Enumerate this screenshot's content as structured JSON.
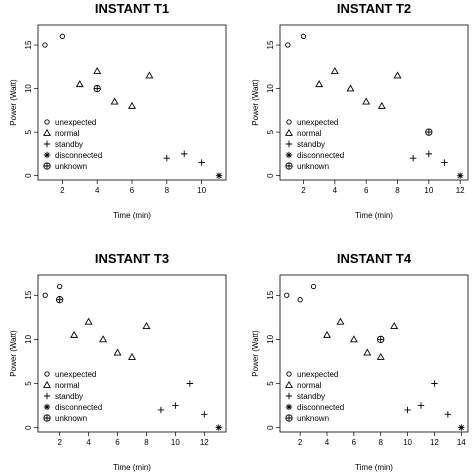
{
  "chart_data": [
    {
      "type": "scatter",
      "title": "INSTANT T1",
      "xlabel": "Time (min)",
      "ylabel": "Power (Watt)",
      "xlim": [
        0.6,
        11.4
      ],
      "ylim": [
        -0.5,
        17.3
      ],
      "xticks": [
        2,
        4,
        6,
        8,
        10
      ],
      "yticks": [
        0,
        5,
        10,
        15
      ],
      "grid": false,
      "legend_position": "bottom-left",
      "series": [
        {
          "name": "unexpected",
          "marker": "circle",
          "points": [
            [
              1,
              15
            ],
            [
              2,
              16
            ]
          ]
        },
        {
          "name": "normal",
          "marker": "triangle",
          "points": [
            [
              3,
              10.5
            ],
            [
              4,
              12
            ],
            [
              5,
              8.5
            ],
            [
              6,
              8
            ],
            [
              7,
              11.5
            ]
          ]
        },
        {
          "name": "standby",
          "marker": "plus",
          "points": [
            [
              8,
              2
            ],
            [
              9,
              2.5
            ],
            [
              10,
              1.5
            ]
          ]
        },
        {
          "name": "disconnected",
          "marker": "asterisk",
          "points": [
            [
              11,
              0
            ]
          ]
        },
        {
          "name": "unknown",
          "marker": "circle-plus",
          "points": [
            [
              4,
              10
            ]
          ]
        }
      ]
    },
    {
      "type": "scatter",
      "title": "INSTANT T2",
      "xlabel": "Time (min)",
      "ylabel": "Power (Watt)",
      "xlim": [
        0.5,
        12.5
      ],
      "ylim": [
        -0.5,
        17.3
      ],
      "xticks": [
        2,
        4,
        6,
        8,
        10,
        12
      ],
      "yticks": [
        0,
        5,
        10,
        15
      ],
      "grid": false,
      "legend_position": "bottom-left",
      "series": [
        {
          "name": "unexpected",
          "marker": "circle",
          "points": [
            [
              1,
              15
            ],
            [
              2,
              16
            ]
          ]
        },
        {
          "name": "normal",
          "marker": "triangle",
          "points": [
            [
              3,
              10.5
            ],
            [
              4,
              12
            ],
            [
              5,
              10
            ],
            [
              6,
              8.5
            ],
            [
              7,
              8
            ],
            [
              8,
              11.5
            ]
          ]
        },
        {
          "name": "standby",
          "marker": "plus",
          "points": [
            [
              9,
              2
            ],
            [
              10,
              2.5
            ],
            [
              11,
              1.5
            ]
          ]
        },
        {
          "name": "disconnected",
          "marker": "asterisk",
          "points": [
            [
              12,
              0
            ]
          ]
        },
        {
          "name": "unknown",
          "marker": "circle-plus",
          "points": [
            [
              10,
              5
            ]
          ]
        }
      ]
    },
    {
      "type": "scatter",
      "title": "INSTANT T3",
      "xlabel": "Time (min)",
      "ylabel": "Power (Watt)",
      "xlim": [
        0.5,
        13.5
      ],
      "ylim": [
        -0.5,
        17.3
      ],
      "xticks": [
        2,
        4,
        6,
        8,
        10,
        12
      ],
      "yticks": [
        0,
        5,
        10,
        15
      ],
      "grid": false,
      "legend_position": "bottom-left",
      "series": [
        {
          "name": "unexpected",
          "marker": "circle",
          "points": [
            [
              1,
              15
            ],
            [
              2,
              16
            ]
          ]
        },
        {
          "name": "normal",
          "marker": "triangle",
          "points": [
            [
              3,
              10.5
            ],
            [
              4,
              12
            ],
            [
              5,
              10
            ],
            [
              6,
              8.5
            ],
            [
              7,
              8
            ],
            [
              8,
              11.5
            ]
          ]
        },
        {
          "name": "standby",
          "marker": "plus",
          "points": [
            [
              9,
              2
            ],
            [
              10,
              2.5
            ],
            [
              11,
              5
            ],
            [
              12,
              1.5
            ]
          ]
        },
        {
          "name": "disconnected",
          "marker": "asterisk",
          "points": [
            [
              13,
              0
            ]
          ]
        },
        {
          "name": "unknown",
          "marker": "circle-plus",
          "points": [
            [
              2,
              14.5
            ]
          ]
        }
      ]
    },
    {
      "type": "scatter",
      "title": "INSTANT T4",
      "xlabel": "Time (min)",
      "ylabel": "Power (Watt)",
      "xlim": [
        0.5,
        14.5
      ],
      "ylim": [
        -0.5,
        17.3
      ],
      "xticks": [
        2,
        4,
        6,
        8,
        10,
        12,
        14
      ],
      "yticks": [
        0,
        5,
        10,
        15
      ],
      "grid": false,
      "legend_position": "bottom-left",
      "series": [
        {
          "name": "unexpected",
          "marker": "circle",
          "points": [
            [
              1,
              15
            ],
            [
              2,
              14.5
            ],
            [
              3,
              16
            ]
          ]
        },
        {
          "name": "normal",
          "marker": "triangle",
          "points": [
            [
              4,
              10.5
            ],
            [
              5,
              12
            ],
            [
              6,
              10
            ],
            [
              7,
              8.5
            ],
            [
              8,
              8
            ],
            [
              9,
              11.5
            ]
          ]
        },
        {
          "name": "standby",
          "marker": "plus",
          "points": [
            [
              10,
              2
            ],
            [
              11,
              2.5
            ],
            [
              12,
              5
            ],
            [
              13,
              1.5
            ]
          ]
        },
        {
          "name": "disconnected",
          "marker": "asterisk",
          "points": [
            [
              14,
              0
            ]
          ]
        },
        {
          "name": "unknown",
          "marker": "circle-plus",
          "points": [
            [
              8,
              10
            ]
          ]
        }
      ]
    }
  ]
}
